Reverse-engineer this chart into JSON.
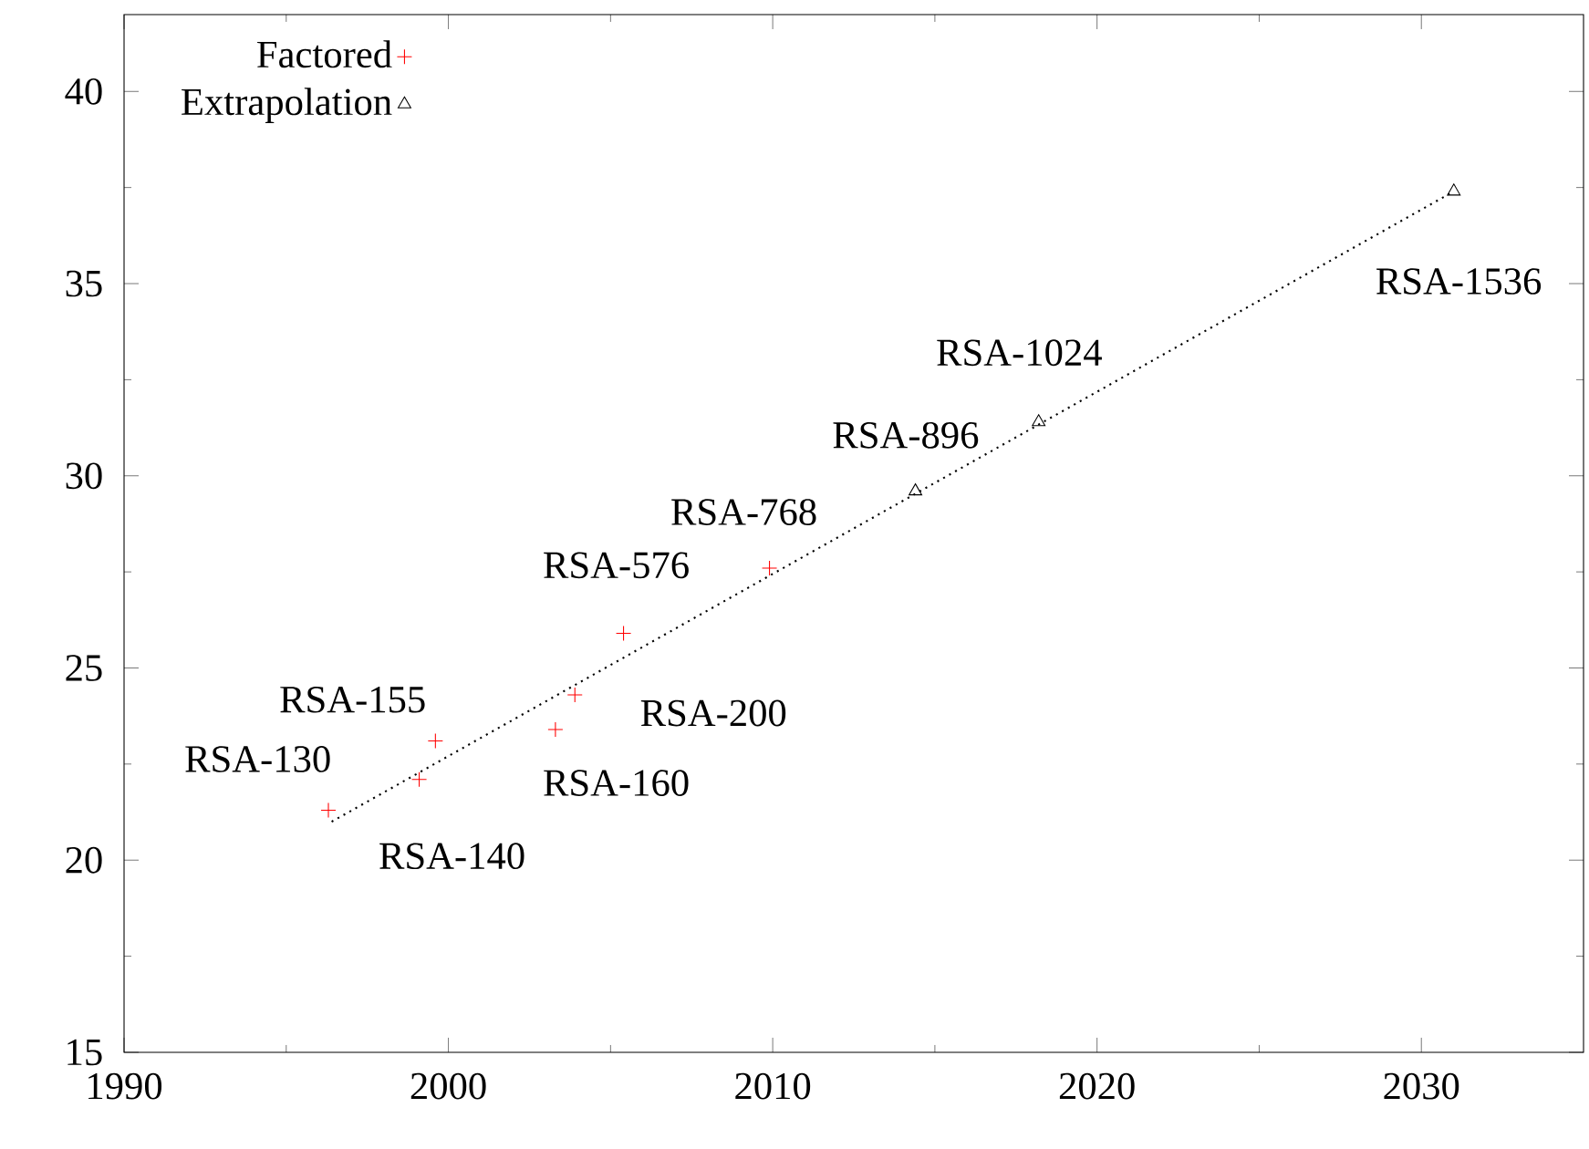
{
  "chart_data": {
    "type": "scatter",
    "series": [
      {
        "name": "Factored",
        "color": "#ff0000",
        "marker": "cross",
        "x": [
          1996.3,
          1999.1,
          1999.6,
          2003.3,
          2003.9,
          2005.4,
          2009.9
        ],
        "values": [
          21.3,
          22.1,
          23.1,
          23.4,
          24.3,
          25.9,
          27.6
        ]
      },
      {
        "name": "Extrapolation",
        "color": "#000000",
        "marker": "triangle",
        "x": [
          2014.4,
          2018.2,
          2031.0
        ],
        "values": [
          29.6,
          31.4,
          37.4
        ]
      },
      {
        "type": "line",
        "color": "#000000",
        "marker": "none",
        "line_style": "dotted",
        "x": [
          1996.4,
          2031.0
        ],
        "values": [
          21.0,
          37.4
        ]
      }
    ],
    "annotations": [
      {
        "text": "RSA-130",
        "x": 1996.3,
        "y": 21.3
      },
      {
        "text": "RSA-140",
        "x": 1999.1,
        "y": 22.1
      },
      {
        "text": "RSA-155",
        "x": 1999.6,
        "y": 23.1
      },
      {
        "text": "RSA-160",
        "x": 2003.3,
        "y": 23.4
      },
      {
        "text": "RSA-200",
        "x": 2003.9,
        "y": 24.3
      },
      {
        "text": "RSA-576",
        "x": 2005.4,
        "y": 25.9
      },
      {
        "text": "RSA-768",
        "x": 2009.9,
        "y": 27.6
      },
      {
        "text": "RSA-896",
        "x": 2014.4,
        "y": 29.6
      },
      {
        "text": "RSA-1024",
        "x": 2018.2,
        "y": 31.4
      },
      {
        "text": "RSA-1536",
        "x": 2031.0,
        "y": 37.4
      }
    ],
    "xlim": [
      1990,
      2035
    ],
    "ylim": [
      15,
      42
    ],
    "xticks": [
      1990,
      2000,
      2010,
      2020,
      2030
    ],
    "yticks": [
      15,
      20,
      25,
      30,
      35,
      40
    ],
    "grid": false,
    "legend": "top left"
  }
}
